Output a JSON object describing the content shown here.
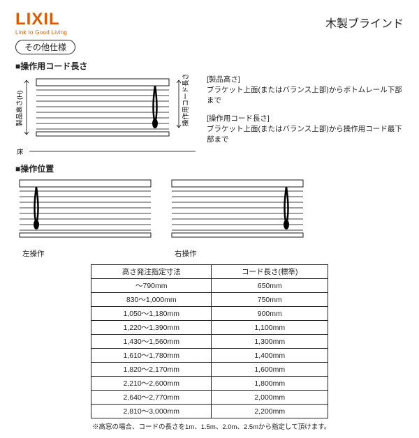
{
  "brand": {
    "name": "LIXIL",
    "tagline": "Link to Good Living",
    "color": "#e05a00"
  },
  "title": "木製ブラインド",
  "badge": "その他仕様",
  "section1": {
    "heading": "■操作用コード長さ",
    "label_height": "製品高さ(H)",
    "label_cord": "操作用コード長さ(L)",
    "floor": "床",
    "desc_head1": "[製品高さ]",
    "desc_body1": "ブラケット上面(またはバランス上部)からボトムレール下部まで",
    "desc_head2": "[操作用コード長さ]",
    "desc_body2": "ブラケット上面(またはバランス上部)から操作用コード最下部まで"
  },
  "section2": {
    "heading": "■操作位置",
    "left_label": "左操作",
    "right_label": "右操作"
  },
  "table": {
    "col1": "高さ発注指定寸法",
    "col2": "コード長さ(標準)",
    "rows": [
      [
        "～790mm",
        "650mm"
      ],
      [
        "830～1,000mm",
        "750mm"
      ],
      [
        "1,050～1,180mm",
        "900mm"
      ],
      [
        "1,220～1,390mm",
        "1,100mm"
      ],
      [
        "1,430～1,560mm",
        "1,300mm"
      ],
      [
        "1,610～1,780mm",
        "1,400mm"
      ],
      [
        "1,820～2,170mm",
        "1,600mm"
      ],
      [
        "2,210～2,600mm",
        "1,800mm"
      ],
      [
        "2,640～2,770mm",
        "2,000mm"
      ],
      [
        "2,810～3,000mm",
        "2,200mm"
      ]
    ]
  },
  "footnote": "※高窓の場合、コードの長さを1m、1.5m、2.0m、2.5mから指定して頂けます。",
  "diagram": {
    "slat_color": "#333",
    "headrail_color": "#555",
    "cord_color": "#000",
    "bg": "#fff"
  }
}
